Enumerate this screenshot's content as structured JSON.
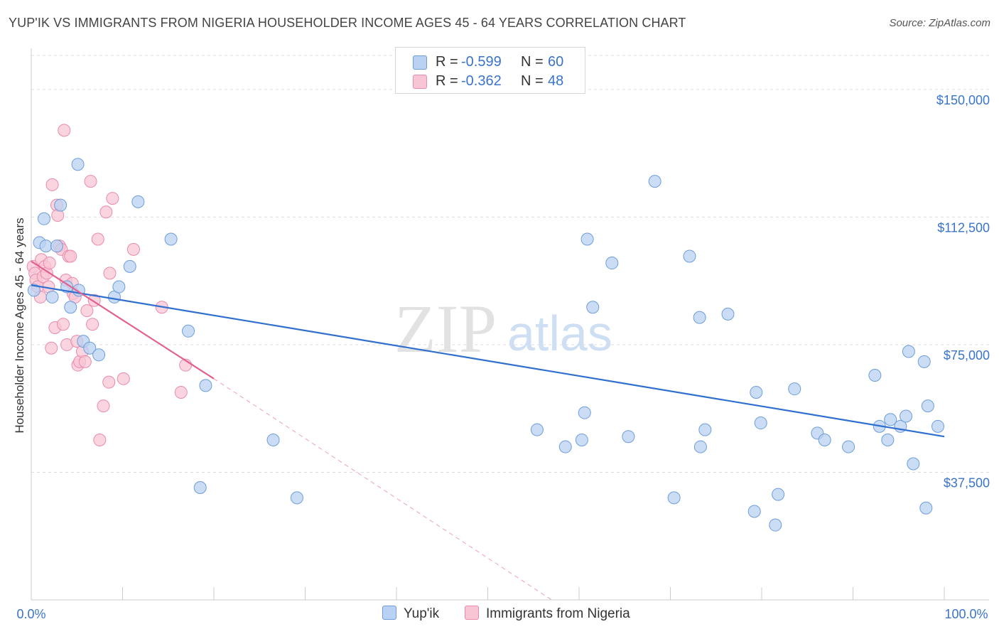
{
  "chart_data": {
    "type": "scatter",
    "title": "YUP'IK VS IMMIGRANTS FROM NIGERIA HOUSEHOLDER INCOME AGES 45 - 64 YEARS CORRELATION CHART",
    "source": "Source: ZipAtlas.com",
    "watermark": {
      "zip": "ZIP",
      "atlas": "atlas"
    },
    "ylabel": "Householder Income Ages 45 - 64 years",
    "xlim": [
      0,
      100
    ],
    "ylim": [
      0,
      160000
    ],
    "x_tick_labels": {
      "left": "0.0%",
      "right": "100.0%"
    },
    "y_ticks": [
      {
        "value": 37500,
        "label": "$37,500"
      },
      {
        "value": 75000,
        "label": "$75,000"
      },
      {
        "value": 112500,
        "label": "$112,500"
      },
      {
        "value": 150000,
        "label": "$150,000"
      }
    ],
    "legend": {
      "r_label": "R =",
      "n_label": "N =",
      "entries": [
        {
          "name": "Yup'ik",
          "r": "-0.599",
          "n": "60"
        },
        {
          "name": "Immigrants from Nigeria",
          "r": "-0.362",
          "n": "48"
        }
      ]
    },
    "colors": {
      "blue_fill": "#b9d1f2",
      "blue_edge": "#6d9ddb",
      "blue_line": "#2f6fcf",
      "pink_fill": "#f8c5d4",
      "pink_edge": "#e98bab",
      "pink_line": "#e2608e",
      "grid": "#dddddd",
      "tick_text": "#3a74c9"
    },
    "series": [
      {
        "name": "Yup'ik",
        "points": [
          [
            0.3,
            91000
          ],
          [
            1.4,
            112000
          ],
          [
            0.9,
            105000
          ],
          [
            1.6,
            104000
          ],
          [
            2.3,
            89000
          ],
          [
            2.8,
            104000
          ],
          [
            3.2,
            116000
          ],
          [
            3.9,
            92000
          ],
          [
            4.3,
            86000
          ],
          [
            5.2,
            91000
          ],
          [
            5.7,
            76000
          ],
          [
            6.4,
            74000
          ],
          [
            7.4,
            72000
          ],
          [
            5.1,
            128000
          ],
          [
            9.1,
            89000
          ],
          [
            9.6,
            92000
          ],
          [
            10.8,
            98000
          ],
          [
            11.7,
            117000
          ],
          [
            15.3,
            106000
          ],
          [
            17.2,
            79000
          ],
          [
            18.5,
            33000
          ],
          [
            19.1,
            63000
          ],
          [
            26.5,
            47000
          ],
          [
            29.1,
            30000
          ],
          [
            55.4,
            50000
          ],
          [
            58.5,
            45000
          ],
          [
            60.3,
            47000
          ],
          [
            60.6,
            55000
          ],
          [
            60.9,
            106000
          ],
          [
            61.5,
            86000
          ],
          [
            63.6,
            99000
          ],
          [
            65.4,
            48000
          ],
          [
            68.3,
            123000
          ],
          [
            70.4,
            30000
          ],
          [
            72.1,
            101000
          ],
          [
            73.2,
            83000
          ],
          [
            73.3,
            45000
          ],
          [
            73.8,
            50000
          ],
          [
            76.3,
            84000
          ],
          [
            79.2,
            26000
          ],
          [
            79.4,
            61000
          ],
          [
            79.9,
            52000
          ],
          [
            81.5,
            22000
          ],
          [
            81.8,
            31000
          ],
          [
            83.6,
            62000
          ],
          [
            86.1,
            49000
          ],
          [
            86.9,
            47000
          ],
          [
            89.5,
            45000
          ],
          [
            92.4,
            66000
          ],
          [
            92.9,
            51000
          ],
          [
            93.8,
            47000
          ],
          [
            94.1,
            53000
          ],
          [
            95.2,
            51000
          ],
          [
            95.8,
            54000
          ],
          [
            96.1,
            73000
          ],
          [
            96.6,
            40000
          ],
          [
            98.0,
            27000
          ],
          [
            97.8,
            70000
          ],
          [
            98.2,
            57000
          ],
          [
            99.3,
            51000
          ]
        ]
      },
      {
        "name": "Immigrants from Nigeria",
        "points": [
          [
            0.2,
            98000
          ],
          [
            0.4,
            96000
          ],
          [
            0.5,
            94000
          ],
          [
            0.7,
            92000
          ],
          [
            1.0,
            89000
          ],
          [
            1.1,
            100000
          ],
          [
            1.3,
            95000
          ],
          [
            1.5,
            98000
          ],
          [
            1.7,
            96000
          ],
          [
            1.9,
            92000
          ],
          [
            2.0,
            99000
          ],
          [
            2.2,
            74000
          ],
          [
            2.3,
            122000
          ],
          [
            2.6,
            80000
          ],
          [
            2.8,
            116000
          ],
          [
            2.9,
            113000
          ],
          [
            3.1,
            104000
          ],
          [
            3.3,
            103000
          ],
          [
            3.5,
            81000
          ],
          [
            3.6,
            138000
          ],
          [
            3.8,
            94000
          ],
          [
            3.9,
            75000
          ],
          [
            4.1,
            101000
          ],
          [
            4.3,
            101000
          ],
          [
            4.5,
            93000
          ],
          [
            4.6,
            90000
          ],
          [
            4.8,
            89000
          ],
          [
            5.0,
            76000
          ],
          [
            5.1,
            69000
          ],
          [
            5.3,
            70000
          ],
          [
            5.6,
            73000
          ],
          [
            5.9,
            70000
          ],
          [
            6.1,
            85000
          ],
          [
            6.5,
            123000
          ],
          [
            6.7,
            81000
          ],
          [
            6.9,
            88000
          ],
          [
            7.3,
            106000
          ],
          [
            7.5,
            47000
          ],
          [
            7.9,
            57000
          ],
          [
            8.2,
            114000
          ],
          [
            8.5,
            64000
          ],
          [
            8.6,
            96000
          ],
          [
            8.9,
            118000
          ],
          [
            10.1,
            65000
          ],
          [
            11.2,
            103000
          ],
          [
            14.3,
            86000
          ],
          [
            16.4,
            61000
          ],
          [
            16.9,
            69000
          ]
        ]
      }
    ],
    "trend_lines": [
      {
        "series": "Yup'ik",
        "start": [
          0,
          92500
        ],
        "end": [
          100,
          48000
        ]
      },
      {
        "series": "Immigrants from Nigeria",
        "solid_start": [
          0,
          99500
        ],
        "solid_end": [
          20,
          65000
        ],
        "dashed_end": [
          57,
          0
        ]
      }
    ]
  }
}
